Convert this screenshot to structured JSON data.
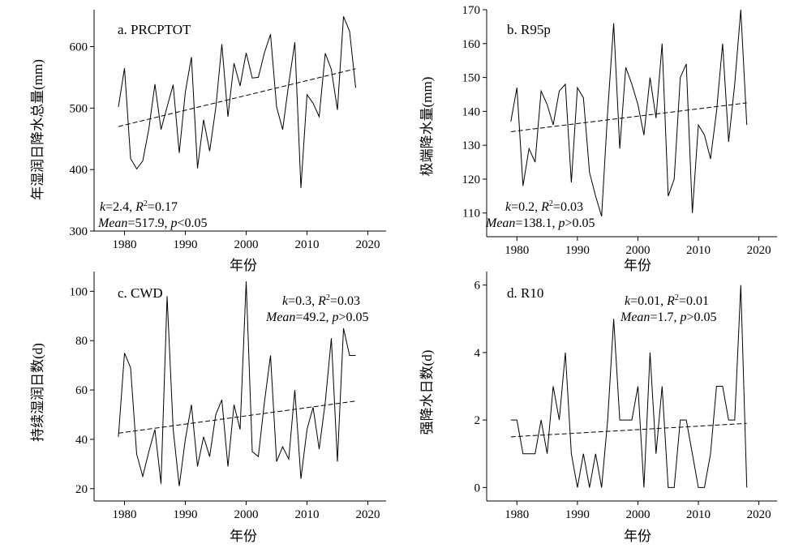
{
  "chart_data": [
    {
      "id": "a",
      "type": "line",
      "panel_label": "a. PRCPTOT",
      "xlabel": "年份",
      "ylabel": "年湿润日降水总量(mm)",
      "xlim": [
        1975,
        2023
      ],
      "ylim": [
        300,
        660
      ],
      "xticks": [
        1980,
        1990,
        2000,
        2010,
        2020
      ],
      "yticks": [
        300,
        400,
        500,
        600
      ],
      "x": [
        1979,
        1980,
        1981,
        1982,
        1983,
        1984,
        1985,
        1986,
        1987,
        1988,
        1989,
        1990,
        1991,
        1992,
        1993,
        1994,
        1995,
        1996,
        1997,
        1998,
        1999,
        2000,
        2001,
        2002,
        2003,
        2004,
        2005,
        2006,
        2007,
        2008,
        2009,
        2010,
        2011,
        2012,
        2013,
        2014,
        2015,
        2016,
        2017,
        2018
      ],
      "series": [
        {
          "values": [
            502,
            565,
            418,
            401,
            414,
            466,
            539,
            465,
            502,
            538,
            427,
            526,
            583,
            402,
            481,
            430,
            500,
            604,
            486,
            573,
            536,
            590,
            549,
            550,
            590,
            620,
            502,
            465,
            540,
            607,
            370,
            522,
            508,
            486,
            589,
            563,
            497,
            649,
            625,
            533
          ]
        }
      ],
      "trend": {
        "x": [
          1979,
          2018
        ],
        "y": [
          470,
          564
        ]
      },
      "annotation": {
        "line1": {
          "k": "=2.4, ",
          "r2": "=0.17"
        },
        "line2": {
          "mean": "=517.9, ",
          "p": "<0.05"
        }
      }
    },
    {
      "id": "b",
      "type": "line",
      "panel_label": "b. R95p",
      "xlabel": "年份",
      "ylabel": "极端降水量(mm)",
      "xlim": [
        1975,
        2023
      ],
      "ylim": [
        103,
        170
      ],
      "xticks": [
        1980,
        1990,
        2000,
        2010,
        2020
      ],
      "yticks": [
        110,
        120,
        130,
        140,
        150,
        160,
        170
      ],
      "x": [
        1979,
        1980,
        1981,
        1982,
        1983,
        1984,
        1985,
        1986,
        1987,
        1988,
        1989,
        1990,
        1991,
        1992,
        1993,
        1994,
        1995,
        1996,
        1997,
        1998,
        1999,
        2000,
        2001,
        2002,
        2003,
        2004,
        2005,
        2006,
        2007,
        2008,
        2009,
        2010,
        2011,
        2012,
        2013,
        2014,
        2015,
        2016,
        2017,
        2018
      ],
      "series": [
        {
          "values": [
            137,
            147,
            118,
            129,
            125,
            146,
            142,
            136,
            146,
            148,
            119,
            147,
            144,
            122,
            115,
            109,
            140,
            166,
            129,
            153,
            148,
            142,
            133,
            150,
            138,
            160,
            115,
            120,
            150,
            154,
            110,
            136,
            133,
            126,
            140,
            160,
            131,
            148,
            170,
            136
          ]
        }
      ],
      "trend": {
        "x": [
          1979,
          2018
        ],
        "y": [
          134,
          142.5
        ]
      },
      "annotation": {
        "line1": {
          "k": "=0.2, ",
          "r2": "=0.03"
        },
        "line2": {
          "mean": "=138.1, ",
          "p": ">0.05"
        }
      }
    },
    {
      "id": "c",
      "type": "line",
      "panel_label": "c. CWD",
      "xlabel": "年份",
      "ylabel": "持续湿润日数(d)",
      "xlim": [
        1975,
        2023
      ],
      "ylim": [
        15,
        108
      ],
      "xticks": [
        1980,
        1990,
        2000,
        2010,
        2020
      ],
      "yticks": [
        20,
        40,
        60,
        80,
        100
      ],
      "x": [
        1979,
        1980,
        1981,
        1982,
        1983,
        1984,
        1985,
        1986,
        1987,
        1988,
        1989,
        1990,
        1991,
        1992,
        1993,
        1994,
        1995,
        1996,
        1997,
        1998,
        1999,
        2000,
        2001,
        2002,
        2003,
        2004,
        2005,
        2006,
        2007,
        2008,
        2009,
        2010,
        2011,
        2012,
        2013,
        2014,
        2015,
        2016,
        2017,
        2018
      ],
      "series": [
        {
          "values": [
            41,
            75,
            69,
            34,
            25,
            35,
            44,
            22,
            98,
            44,
            21,
            40,
            54,
            29,
            41,
            33,
            50,
            56,
            29,
            54,
            44,
            104,
            35,
            33,
            55,
            74,
            31,
            37,
            32,
            60,
            24,
            44,
            53,
            36,
            55,
            81,
            31,
            85,
            74,
            74
          ]
        }
      ],
      "trend": {
        "x": [
          1979,
          2018
        ],
        "y": [
          42.5,
          55.5
        ]
      },
      "annotation": {
        "line1": {
          "k": "=0.3, ",
          "r2": "=0.03"
        },
        "line2": {
          "mean": "=49.2, ",
          "p": ">0.05"
        }
      }
    },
    {
      "id": "d",
      "type": "line",
      "panel_label": "d. R10",
      "xlabel": "年份",
      "ylabel": "强降水日数(d)",
      "xlim": [
        1975,
        2023
      ],
      "ylim": [
        -0.4,
        6.4
      ],
      "xticks": [
        1980,
        1990,
        2000,
        2010,
        2020
      ],
      "yticks": [
        0,
        2,
        4,
        6
      ],
      "x": [
        1979,
        1980,
        1981,
        1982,
        1983,
        1984,
        1985,
        1986,
        1987,
        1988,
        1989,
        1990,
        1991,
        1992,
        1993,
        1994,
        1995,
        1996,
        1997,
        1998,
        1999,
        2000,
        2001,
        2002,
        2003,
        2004,
        2005,
        2006,
        2007,
        2008,
        2009,
        2010,
        2011,
        2012,
        2013,
        2014,
        2015,
        2016,
        2017,
        2018
      ],
      "series": [
        {
          "values": [
            2,
            2,
            1,
            1,
            1,
            2,
            1,
            3,
            2,
            4,
            1,
            0,
            1,
            0,
            1,
            0,
            2,
            5,
            2,
            2,
            2,
            3,
            0,
            4,
            1,
            3,
            0,
            0,
            2,
            2,
            1,
            0,
            0,
            1,
            3,
            3,
            2,
            2,
            6,
            0
          ]
        }
      ],
      "trend": {
        "x": [
          1979,
          2018
        ],
        "y": [
          1.5,
          1.9
        ]
      },
      "annotation": {
        "line1": {
          "k": "=0.01, ",
          "r2": "=0.01"
        },
        "line2": {
          "mean": "=1.7, ",
          "p": ">0.05"
        }
      }
    }
  ]
}
